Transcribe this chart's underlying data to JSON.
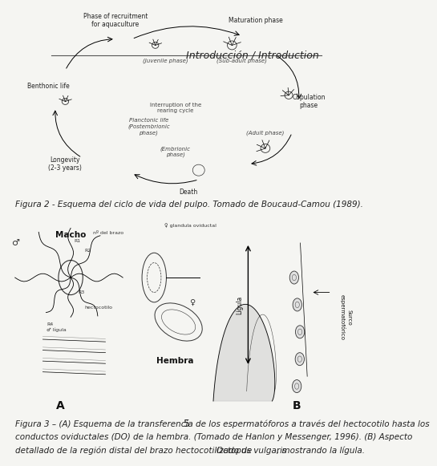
{
  "bg_color": "#f5f5f2",
  "header_text": "Introducción / Introduction",
  "header_color": "#222222",
  "header_fontsize": 9,
  "fig2_caption": "Figura 2 - Esquema del ciclo de vida del pulpo. Tomado de Boucaud-Camou (1989).",
  "fig3_caption_line1": "Figura 3 – (A) Esquema de la transferencia de los espermatóforos a través del hectocotilo hasta los",
  "fig3_caption_line2": "conductos oviductales (DO) de la hembra. (Tomado de Hanlon y Messenger, 1996). (B) Aspecto",
  "fig3_caption_line3a": "detallado de la región distal del brazo hectocotilizado de ",
  "fig3_caption_line3b": "Octopus vulgaris",
  "fig3_caption_line3c": ", mostrando la lígula.",
  "page_number": "5",
  "caption_fontsize": 7.5,
  "page_num_fontsize": 9
}
